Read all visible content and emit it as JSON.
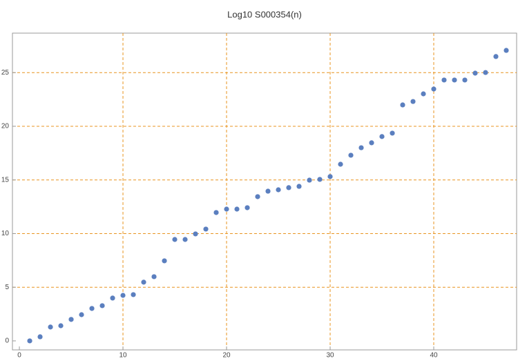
{
  "chart_data": {
    "type": "scatter",
    "title": "Log10 S000354(n)",
    "x": [
      1,
      2,
      3,
      4,
      5,
      6,
      7,
      8,
      9,
      10,
      11,
      12,
      13,
      14,
      15,
      16,
      17,
      18,
      19,
      20,
      21,
      22,
      23,
      24,
      25,
      26,
      27,
      28,
      29,
      30,
      31,
      32,
      33,
      34,
      35,
      36,
      37,
      38,
      39,
      40,
      41,
      42,
      43,
      44,
      45,
      46,
      47
    ],
    "values": [
      0,
      0.38,
      1.29,
      1.41,
      2.0,
      2.44,
      3.02,
      3.28,
      3.99,
      4.24,
      4.31,
      5.47,
      5.98,
      7.46,
      9.45,
      9.45,
      9.97,
      10.42,
      11.96,
      12.28,
      12.28,
      12.41,
      13.44,
      13.95,
      14.08,
      14.28,
      14.4,
      14.98,
      15.05,
      15.31,
      16.46,
      17.3,
      18.0,
      18.46,
      19.04,
      19.36,
      21.99,
      22.31,
      23.02,
      23.47,
      24.31,
      24.31,
      24.31,
      24.95,
      25.01,
      26.5,
      27.07
    ],
    "color": "#5b7fbf",
    "xlim": [
      -0.67,
      48
    ],
    "ylim": [
      -0.84,
      28.68
    ],
    "xticks": [
      0,
      10,
      20,
      30,
      40
    ],
    "yticks": [
      0,
      5,
      10,
      15,
      20,
      25
    ],
    "grid_x": [
      10,
      20,
      30,
      40
    ],
    "grid_y": [
      5,
      10,
      15,
      20,
      25
    ],
    "grid_color": "#e8941f"
  }
}
